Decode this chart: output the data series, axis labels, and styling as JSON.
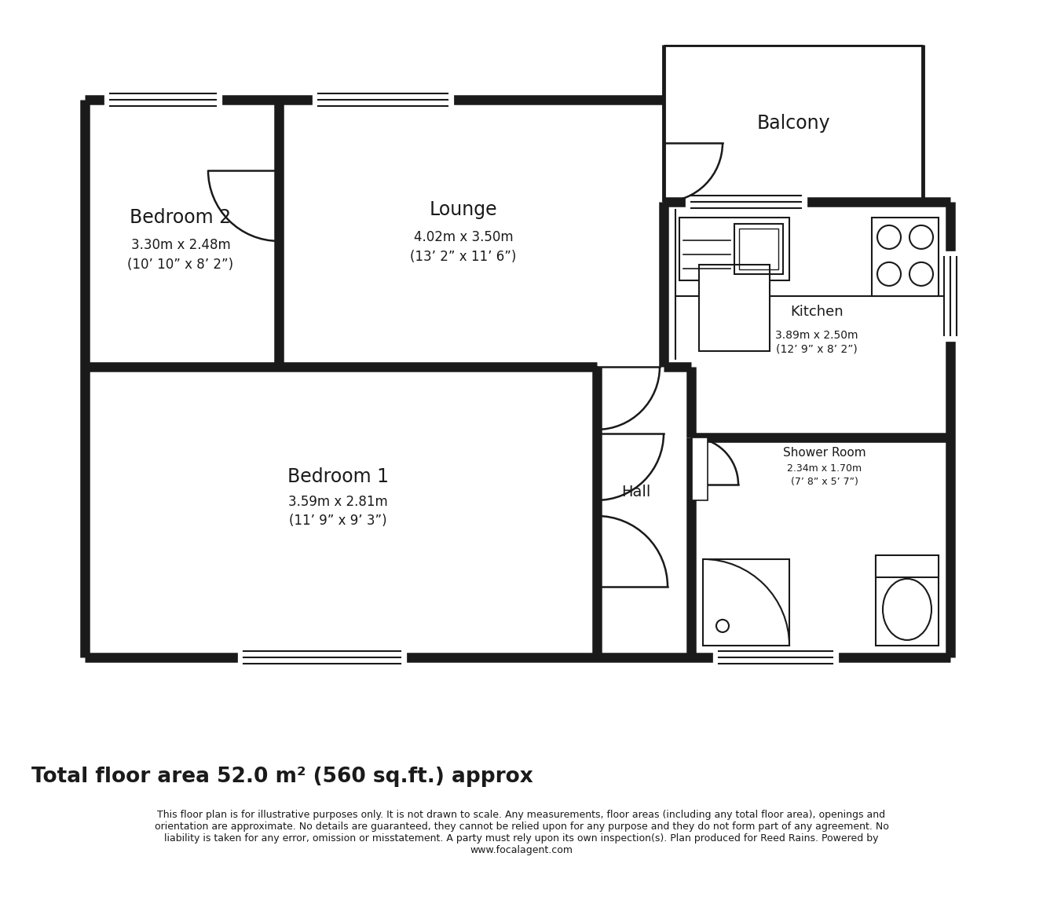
{
  "bg_color": "#ffffff",
  "wall_color": "#1a1a1a",
  "room_text_color": "#1a1a1a",
  "title_text": "Total floor area 52.0 m² (560 sq.ft.) approx",
  "disclaimer_line1": "This floor plan is for illustrative purposes only. It is not drawn to scale. Any measurements, floor areas (including any total floor area), openings and",
  "disclaimer_line2": "orientation are approximate. No details are guaranteed, they cannot be relied upon for any purpose and they do not form part of any agreement. No",
  "disclaimer_line3": "liability is taken for any error, omission or misstatement. A party must rely upon its own inspection(s). Plan produced for Reed Rains. Powered by",
  "disclaimer_line4": "www.focalagent.com",
  "rooms": [
    {
      "name": "Bedroom 2",
      "dim1": "3.30m x 2.48m",
      "dim2": "(10’ 10” x 8’ 2”)"
    },
    {
      "name": "Lounge",
      "dim1": "4.02m x 3.50m",
      "dim2": "(13’ 2” x 11’ 6”)"
    },
    {
      "name": "Balcony",
      "dim1": "",
      "dim2": ""
    },
    {
      "name": "Kitchen",
      "dim1": "3.89m x 2.50m",
      "dim2": "(12’ 9” x 8’ 2”)"
    },
    {
      "name": "Bedroom 1",
      "dim1": "3.59m x 2.81m",
      "dim2": "(11’ 9” x 9’ 3”)"
    },
    {
      "name": "Hall",
      "dim1": "",
      "dim2": ""
    },
    {
      "name": "Shower Room",
      "dim1": "2.34m x 1.70m",
      "dim2": "(7’ 8” x 5’ 7”)"
    }
  ]
}
